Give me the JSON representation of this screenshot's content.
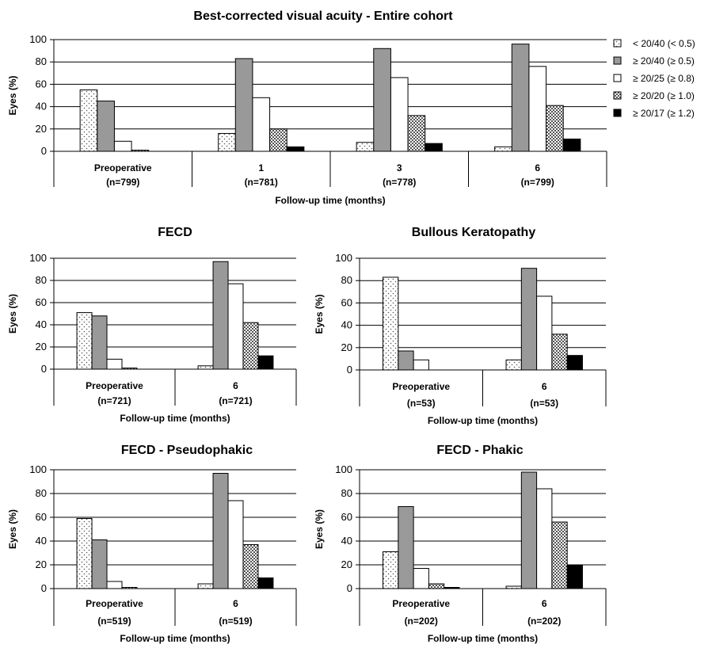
{
  "legend": {
    "placement": "right",
    "items": [
      {
        "label": "< 20/40 (< 0.5)",
        "pattern": "dotted"
      },
      {
        "label": "≥ 20/40 (≥ 0.5)",
        "pattern": "gray",
        "color": "#999999"
      },
      {
        "label": "≥ 20/25 (≥ 0.8)",
        "pattern": "white",
        "color": "#ffffff"
      },
      {
        "label": "≥ 20/20 (≥ 1.0)",
        "pattern": "crosshatch"
      },
      {
        "label": "≥ 20/17 (≥ 1.2)",
        "pattern": "black",
        "color": "#000000"
      }
    ]
  },
  "chart_data": [
    {
      "type": "bar",
      "title": "Best-corrected visual acuity - Entire cohort",
      "xlabel": "Follow-up time (months)",
      "ylabel": "Eyes (%)",
      "ylim": [
        0,
        100
      ],
      "yticks": [
        0,
        20,
        40,
        60,
        80,
        100
      ],
      "grid": true,
      "categories": [
        "Preoperative",
        "1",
        "3",
        "6"
      ],
      "category_counts": [
        "(n=799)",
        "(n=781)",
        "(n=778)",
        "(n=799)"
      ],
      "series": [
        {
          "name": "< 20/40 (< 0.5)",
          "values": [
            55,
            16,
            8,
            4
          ]
        },
        {
          "name": "≥ 20/40 (≥ 0.5)",
          "values": [
            45,
            83,
            92,
            96
          ]
        },
        {
          "name": "≥ 20/25 (≥ 0.8)",
          "values": [
            9,
            48,
            66,
            76
          ]
        },
        {
          "name": "≥ 20/20 (≥ 1.0)",
          "values": [
            1,
            20,
            32,
            41
          ]
        },
        {
          "name": "≥ 20/17 (≥ 1.2)",
          "values": [
            0,
            4,
            7,
            11
          ]
        }
      ]
    },
    {
      "type": "bar",
      "title": "FECD",
      "xlabel": "Follow-up time (months)",
      "ylabel": "Eyes (%)",
      "ylim": [
        0,
        100
      ],
      "yticks": [
        0,
        20,
        40,
        60,
        80,
        100
      ],
      "grid": true,
      "categories": [
        "Preoperative",
        "6"
      ],
      "category_counts": [
        "(n=721)",
        "(n=721)"
      ],
      "series": [
        {
          "name": "< 20/40 (< 0.5)",
          "values": [
            51,
            3
          ]
        },
        {
          "name": "≥ 20/40 (≥ 0.5)",
          "values": [
            48,
            97
          ]
        },
        {
          "name": "≥ 20/25 (≥ 0.8)",
          "values": [
            9,
            77
          ]
        },
        {
          "name": "≥ 20/20 (≥ 1.0)",
          "values": [
            1,
            42
          ]
        },
        {
          "name": "≥ 20/17 (≥ 1.2)",
          "values": [
            0,
            12
          ]
        }
      ]
    },
    {
      "type": "bar",
      "title": "Bullous Keratopathy",
      "xlabel": "Follow-up time (months)",
      "ylabel": "Eyes (%)",
      "ylim": [
        0,
        100
      ],
      "yticks": [
        0,
        20,
        40,
        60,
        80,
        100
      ],
      "grid": true,
      "categories": [
        "Preoperative",
        "6"
      ],
      "category_counts": [
        "(n=53)",
        "(n=53)"
      ],
      "series": [
        {
          "name": "< 20/40 (< 0.5)",
          "values": [
            83,
            9
          ]
        },
        {
          "name": "≥ 20/40 (≥ 0.5)",
          "values": [
            17,
            91
          ]
        },
        {
          "name": "≥ 20/25 (≥ 0.8)",
          "values": [
            9,
            66
          ]
        },
        {
          "name": "≥ 20/20 (≥ 1.0)",
          "values": [
            0,
            32
          ]
        },
        {
          "name": "≥ 20/17 (≥ 1.2)",
          "values": [
            0,
            13
          ]
        }
      ]
    },
    {
      "type": "bar",
      "title": "FECD - Pseudophakic",
      "xlabel": "Follow-up time (months)",
      "ylabel": "Eyes (%)",
      "ylim": [
        0,
        100
      ],
      "yticks": [
        0,
        20,
        40,
        60,
        80,
        100
      ],
      "grid": true,
      "categories": [
        "Preoperative",
        "6"
      ],
      "category_counts": [
        "(n=519)",
        "(n=519)"
      ],
      "series": [
        {
          "name": "< 20/40 (< 0.5)",
          "values": [
            59,
            4
          ]
        },
        {
          "name": "≥ 20/40 (≥ 0.5)",
          "values": [
            41,
            97
          ]
        },
        {
          "name": "≥ 20/25 (≥ 0.8)",
          "values": [
            6,
            74
          ]
        },
        {
          "name": "≥ 20/20 (≥ 1.0)",
          "values": [
            1,
            37
          ]
        },
        {
          "name": "≥ 20/17 (≥ 1.2)",
          "values": [
            0,
            9
          ]
        }
      ]
    },
    {
      "type": "bar",
      "title": "FECD - Phakic",
      "xlabel": "Follow-up time (months)",
      "ylabel": "Eyes (%)",
      "ylim": [
        0,
        100
      ],
      "yticks": [
        0,
        20,
        40,
        60,
        80,
        100
      ],
      "grid": true,
      "categories": [
        "Preoperative",
        "6"
      ],
      "category_counts": [
        "(n=202)",
        "(n=202)"
      ],
      "series": [
        {
          "name": "< 20/40 (< 0.5)",
          "values": [
            31,
            2
          ]
        },
        {
          "name": "≥ 20/40 (≥ 0.5)",
          "values": [
            69,
            98
          ]
        },
        {
          "name": "≥ 20/25 (≥ 0.8)",
          "values": [
            17,
            84
          ]
        },
        {
          "name": "≥ 20/20 (≥ 1.0)",
          "values": [
            4,
            56
          ]
        },
        {
          "name": "≥ 20/17 (≥ 1.2)",
          "values": [
            1,
            20
          ]
        }
      ]
    }
  ]
}
